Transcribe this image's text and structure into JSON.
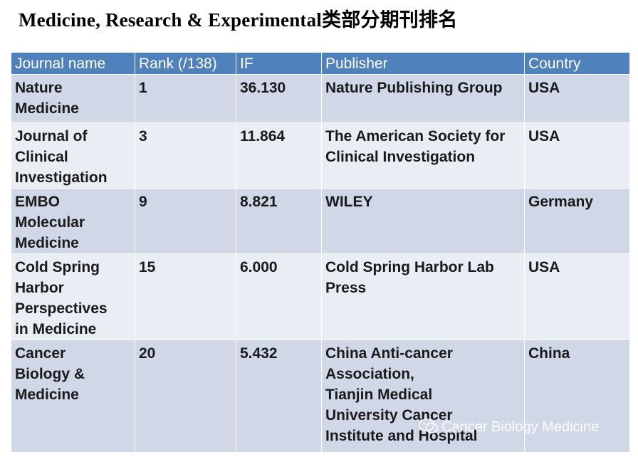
{
  "title": "Medicine, Research & Experimental类部分期刊排名",
  "table": {
    "headers": [
      "Journal name",
      "Rank (/138)",
      "IF",
      "Publisher",
      "Country"
    ],
    "rows": [
      {
        "journal": [
          "Nature",
          "Medicine"
        ],
        "rank": "1",
        "if": "36.130",
        "publisher": [
          "Nature Publishing Group"
        ],
        "country": "USA"
      },
      {
        "journal": [
          "Journal of",
          "Clinical",
          "Investigation"
        ],
        "rank": "3",
        "if": "11.864",
        "publisher": [
          "The American Society for",
          "Clinical Investigation"
        ],
        "country": "USA"
      },
      {
        "journal": [
          "EMBO",
          "Molecular",
          "Medicine"
        ],
        "rank": "9",
        "if": "8.821",
        "publisher": [
          "WILEY"
        ],
        "country": "Germany"
      },
      {
        "journal": [
          "Cold Spring",
          "Harbor",
          "Perspectives",
          "in Medicine"
        ],
        "rank": "15",
        "if": "6.000",
        "publisher": [
          "Cold Spring Harbor Lab",
          "Press"
        ],
        "country": "USA"
      },
      {
        "journal": [
          "Cancer",
          "Biology &",
          "Medicine"
        ],
        "rank": "20",
        "if": "5.432",
        "publisher": [
          "China Anti-cancer",
          "Association,",
          "Tianjin Medical",
          "University Cancer",
          "Institute and Hospital"
        ],
        "country": "China"
      }
    ]
  },
  "watermark": {
    "text": "Cancer Biology Medicine",
    "icon": "wechat-icon"
  }
}
